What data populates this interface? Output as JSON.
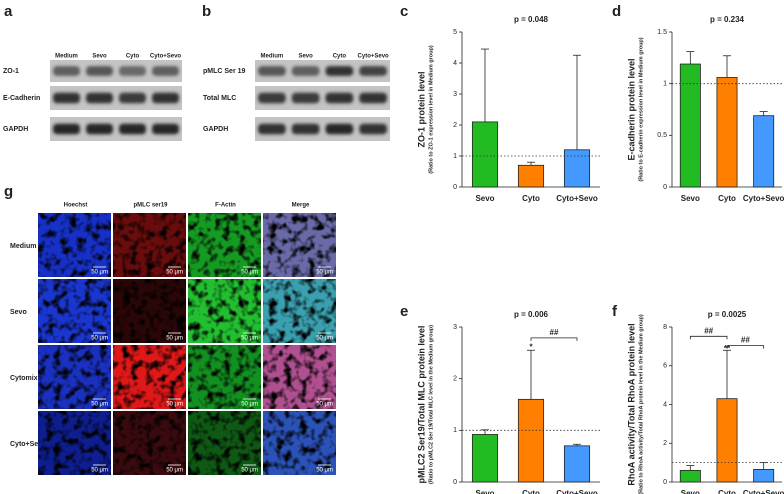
{
  "chart_data": [
    {
      "type": "bar",
      "label": "c",
      "subtitle": "p = 0.048",
      "ylabel": "ZO-1 protein level",
      "ylabel_note": "(Ratio to ZO-1 expression level in Medium group)",
      "categories": [
        "Sevo",
        "Cyto",
        "Cyto+Sevo"
      ],
      "values": [
        2.1,
        0.7,
        1.2
      ],
      "errors": [
        2.35,
        0.1,
        3.05
      ],
      "colors": [
        "#22bb22",
        "#ff8000",
        "#4499ff"
      ],
      "ylim": [
        0,
        5
      ],
      "yticks": [
        0,
        1,
        2,
        3,
        4,
        5
      ],
      "reference_line": 1,
      "annotations": []
    },
    {
      "type": "bar",
      "label": "d",
      "subtitle": "p = 0.234",
      "ylabel": "E-cadherin protein level",
      "ylabel_note": "(Ratio to E-cadherin expression level in Medium group)",
      "categories": [
        "Sevo",
        "Cyto",
        "Cyto+Sevo"
      ],
      "values": [
        1.19,
        1.06,
        0.69
      ],
      "errors": [
        0.12,
        0.21,
        0.04
      ],
      "colors": [
        "#22bb22",
        "#ff8000",
        "#4499ff"
      ],
      "ylim": [
        0,
        1.5
      ],
      "yticks": [
        0,
        0.5,
        1,
        1.5
      ],
      "reference_line": 1,
      "annotations": []
    },
    {
      "type": "bar",
      "label": "e",
      "subtitle": "p = 0.006",
      "ylabel": "pMLC2 Ser19/Total MLC protein level",
      "ylabel_note": "(Ratio to pMLC2 Ser 19/Total MLC level in the Medium group)",
      "categories": [
        "Sevo",
        "Cyto",
        "Cyto+Sevo"
      ],
      "values": [
        0.92,
        1.6,
        0.7
      ],
      "errors": [
        0.09,
        0.95,
        0.03
      ],
      "colors": [
        "#22bb22",
        "#ff8000",
        "#4499ff"
      ],
      "ylim": [
        0,
        3
      ],
      "yticks": [
        0,
        1,
        2,
        3
      ],
      "reference_line": 1,
      "annotations": [
        "*",
        "##"
      ]
    },
    {
      "type": "bar",
      "label": "f",
      "subtitle": "p = 0.0025",
      "ylabel": "RhoA activity/Total RhoA protein level",
      "ylabel_note": "(Ratio to RhoA activity/Total RhoA protein level in the Medium group)",
      "categories": [
        "Sevo",
        "Cyto",
        "Cyto+Sevo"
      ],
      "values": [
        0.6,
        4.3,
        0.65
      ],
      "errors": [
        0.25,
        2.5,
        0.35
      ],
      "colors": [
        "#22bb22",
        "#ff8000",
        "#4499ff"
      ],
      "ylim": [
        0,
        8
      ],
      "yticks": [
        0,
        2,
        4,
        6,
        8
      ],
      "reference_line": 1,
      "annotations": [
        "##",
        "**",
        "##"
      ]
    }
  ],
  "panels": {
    "a": {
      "label": "a",
      "lanes": [
        "Medium",
        "Sevo",
        "Cyto",
        "Cyto+Sevo"
      ],
      "rows": [
        "ZO-1",
        "E-Cadherin",
        "GAPDH"
      ]
    },
    "b": {
      "label": "b",
      "lanes": [
        "Medium",
        "Sevo",
        "Cyto",
        "Cyto+Sevo"
      ],
      "rows": [
        "pMLC Ser 19",
        "Total MLC",
        "GAPDH"
      ]
    },
    "g": {
      "label": "g",
      "columns": [
        "Hoechst",
        "pMLC ser19",
        "F-Actin",
        "Merge"
      ],
      "rows": [
        "Medium",
        "Sevo",
        "Cytomix",
        "Cyto+Sevo"
      ],
      "scale_bar": "50 μm"
    }
  }
}
